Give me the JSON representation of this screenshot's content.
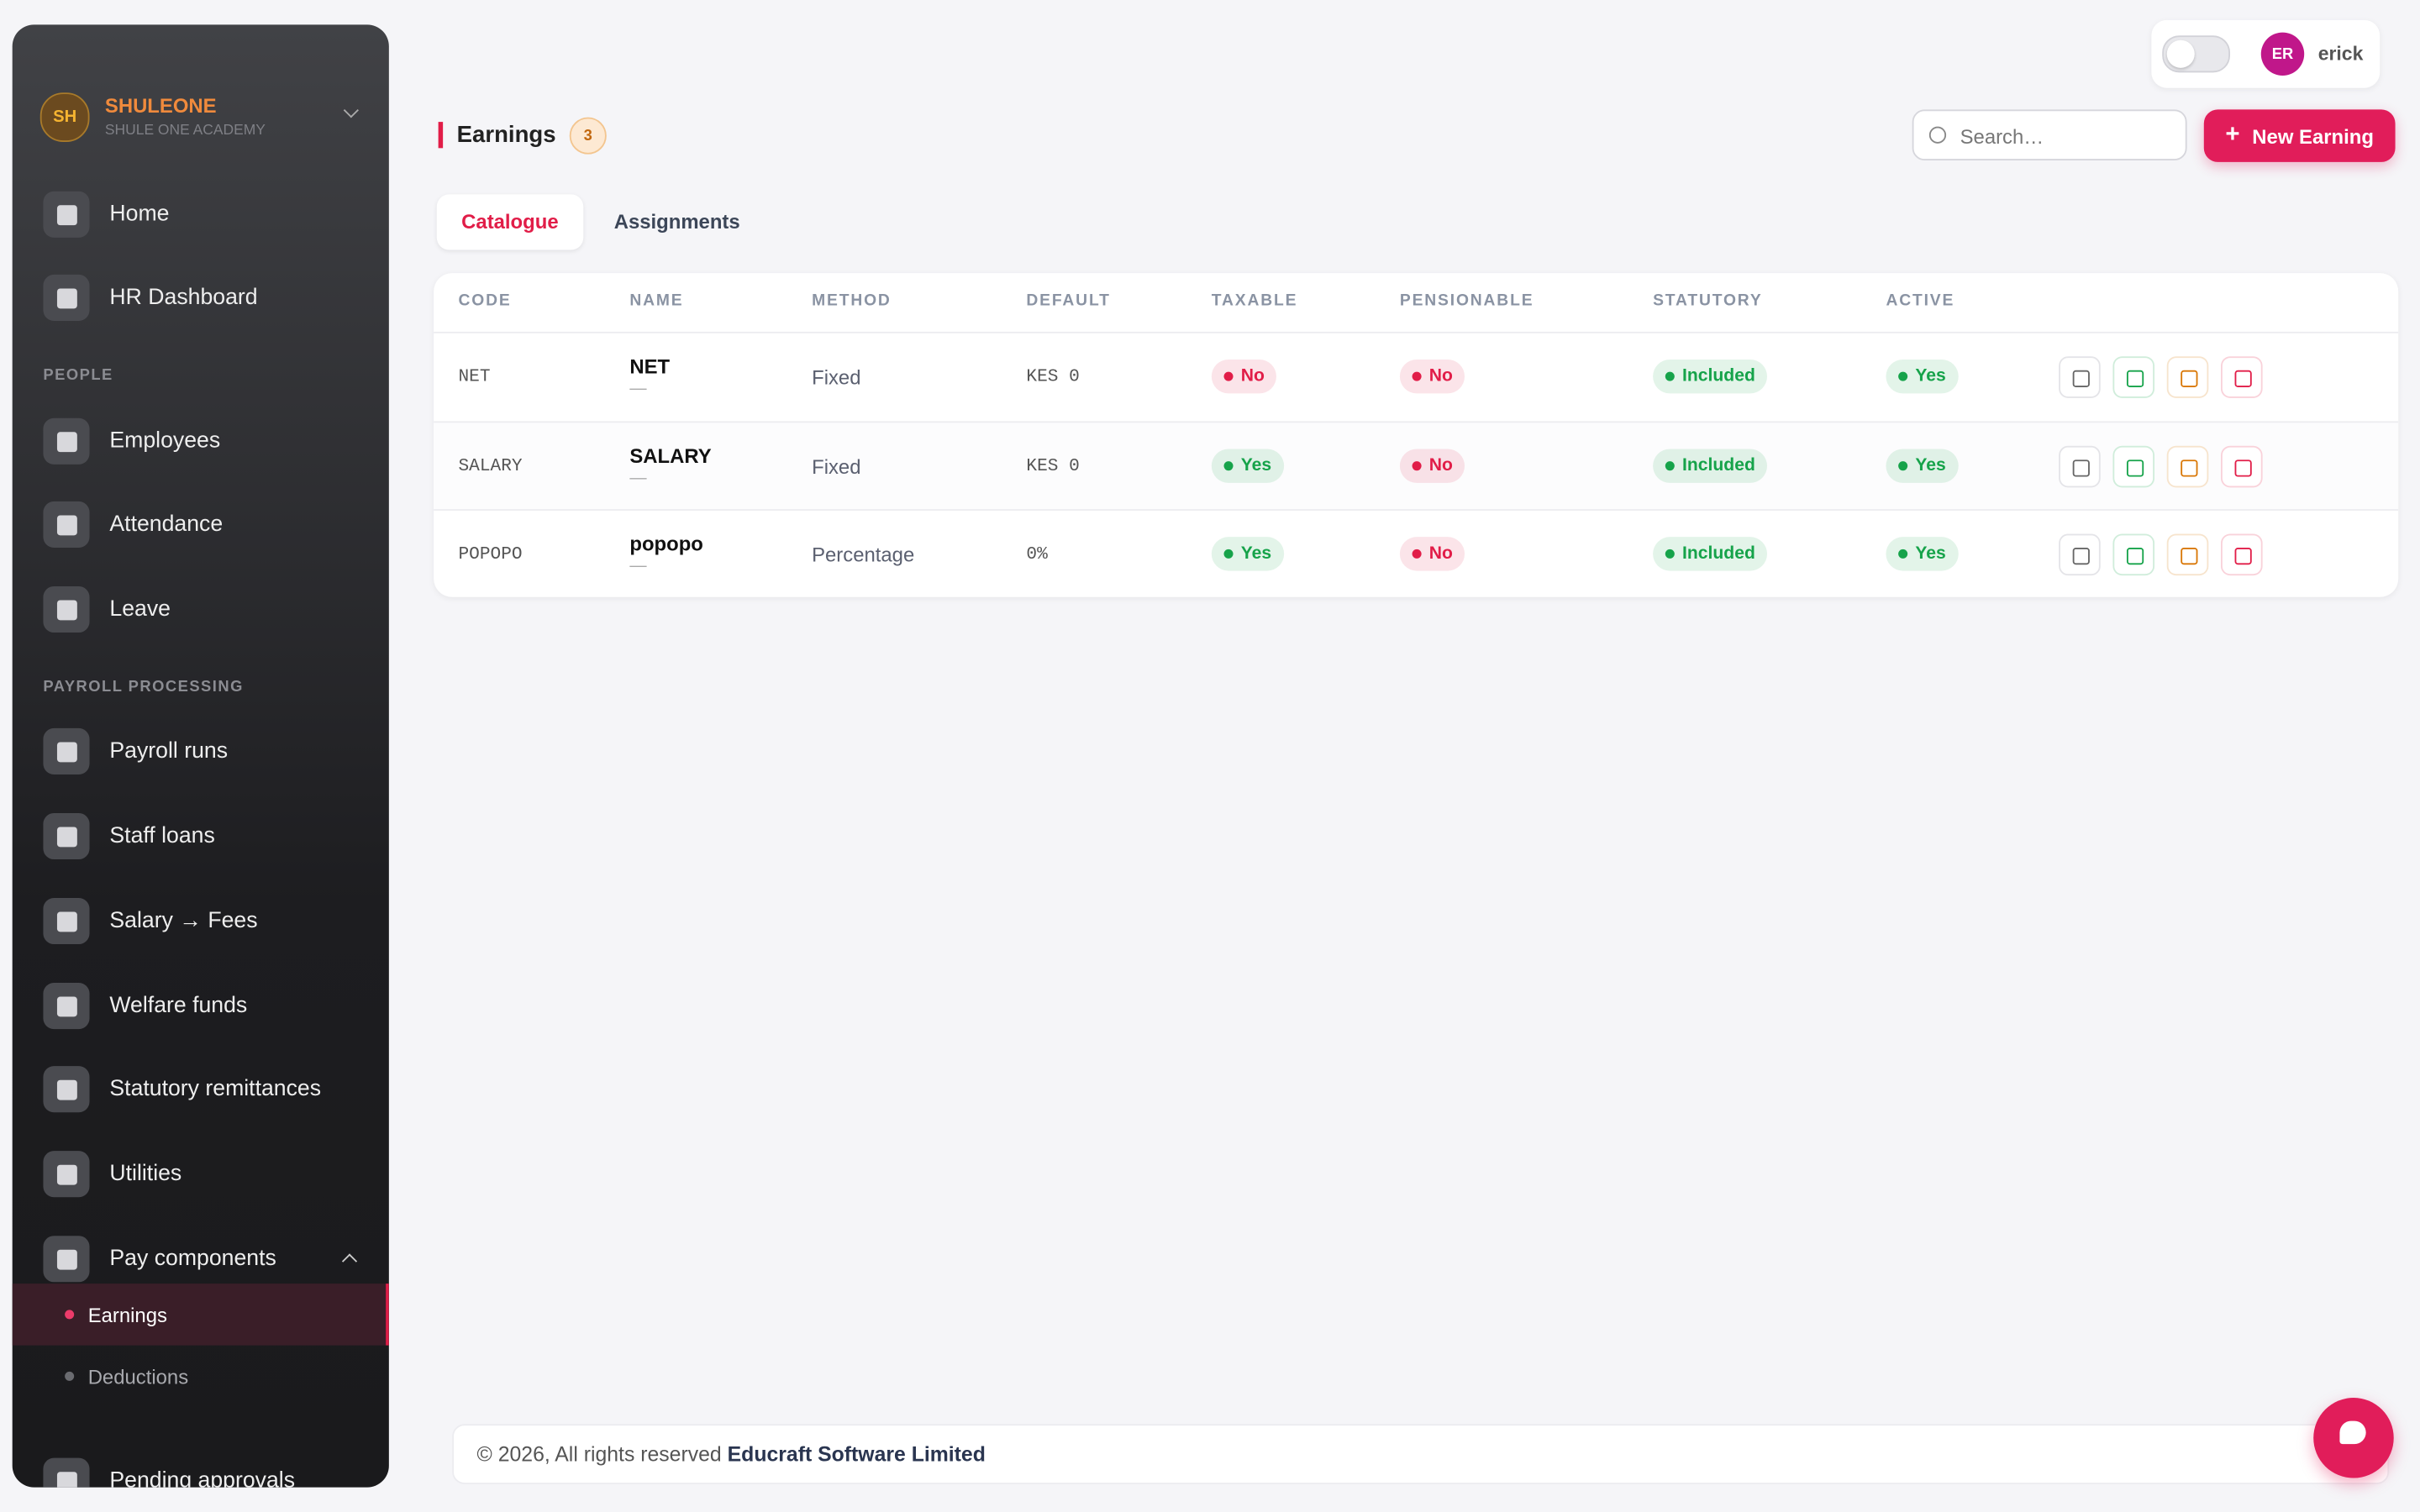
{
  "sidebar": {
    "brand": {
      "initials": "SH",
      "name": "SHULEONE",
      "subtitle": "SHULE ONE ACADEMY"
    },
    "entries": [
      {
        "label": "Home"
      },
      {
        "label": "HR Dashboard"
      },
      {
        "section": "PEOPLE"
      },
      {
        "label": "Employees"
      },
      {
        "label": "Attendance"
      },
      {
        "label": "Leave"
      },
      {
        "section": "PAYROLL PROCESSING"
      },
      {
        "label": "Payroll runs"
      },
      {
        "label": "Staff loans"
      },
      {
        "label": "Salary → Fees"
      },
      {
        "label": "Welfare funds"
      },
      {
        "label": "Statutory remittances"
      },
      {
        "label": "Utilities"
      },
      {
        "label": "Pay components",
        "children": [
          "Earnings",
          "Deductions"
        ]
      },
      {
        "label": "Pending approvals"
      }
    ]
  },
  "topbar": {
    "user_initials": "ER",
    "user_name": "erick"
  },
  "header": {
    "title": "Earnings",
    "count": 3,
    "search_placeholder": "Search…",
    "new_button": "New Earning"
  },
  "tabs": [
    "Catalogue",
    "Assignments"
  ],
  "table": {
    "columns": [
      "CODE",
      "NAME",
      "METHOD",
      "DEFAULT",
      "TAXABLE",
      "PENSIONABLE",
      "STATUTORY",
      "ACTIVE"
    ],
    "rows": [
      {
        "code": "NET",
        "name": "NET",
        "note": "—",
        "method": "Fixed",
        "default": "KES 0",
        "taxable": {
          "text": "No",
          "color": "#e11d48"
        },
        "pensionable": {
          "text": "No",
          "color": "#e11d48"
        },
        "statutory": {
          "text": "Included",
          "color": "#16a34a"
        },
        "active": {
          "text": "Yes",
          "color": "#16a34a"
        }
      },
      {
        "code": "SALARY",
        "name": "SALARY",
        "note": "—",
        "method": "Fixed",
        "default": "KES 0",
        "taxable": {
          "text": "Yes",
          "color": "#16a34a"
        },
        "pensionable": {
          "text": "No",
          "color": "#e11d48"
        },
        "statutory": {
          "text": "Included",
          "color": "#16a34a"
        },
        "active": {
          "text": "Yes",
          "color": "#16a34a"
        }
      },
      {
        "code": "POPOPO",
        "name": "popopo",
        "note": "—",
        "method": "Percentage",
        "default": "0%",
        "taxable": {
          "text": "Yes",
          "color": "#16a34a"
        },
        "pensionable": {
          "text": "No",
          "color": "#e11d48"
        },
        "statutory": {
          "text": "Included",
          "color": "#16a34a"
        },
        "active": {
          "text": "Yes",
          "color": "#16a34a"
        }
      }
    ]
  },
  "footer": {
    "text": "© 2026, All rights reserved",
    "company": "Educraft Software Limited"
  }
}
